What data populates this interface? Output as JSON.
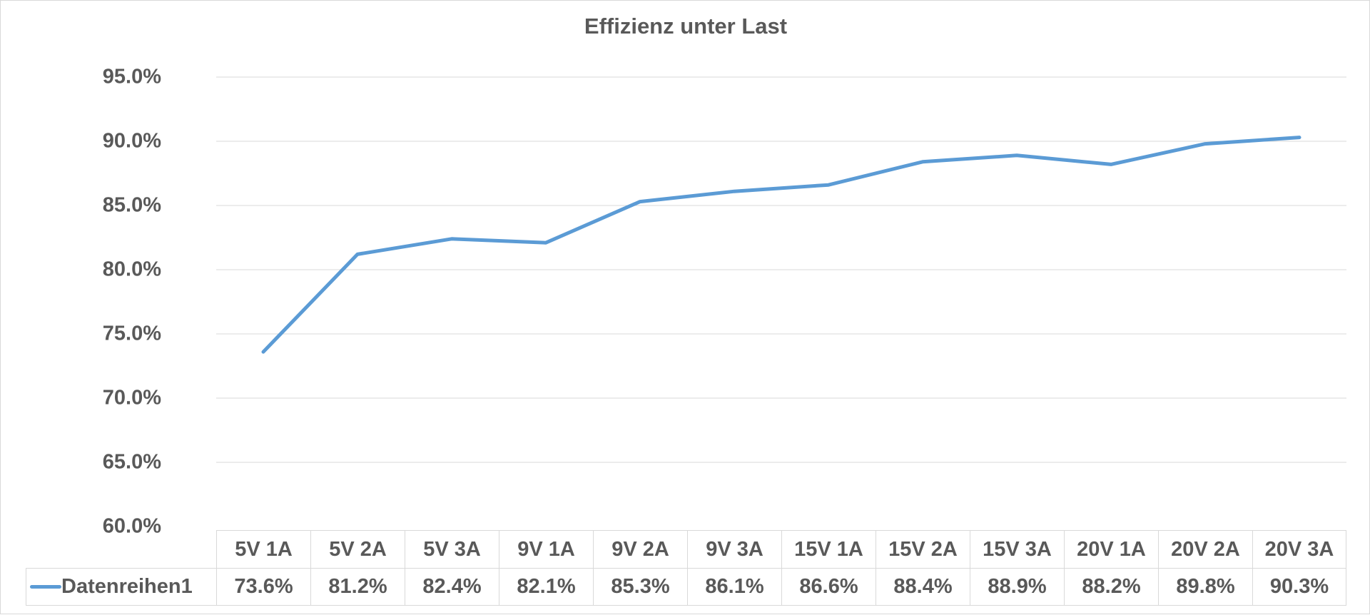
{
  "title": "Effizienz unter Last",
  "colors": {
    "series": "#5B9BD5",
    "gridline": "#D9D9D9",
    "table_border": "#D9D9D9",
    "text": "#595959"
  },
  "chart_data": {
    "type": "line",
    "title": "Effizienz unter Last",
    "categories": [
      "5V 1A",
      "5V 2A",
      "5V 3A",
      "9V 1A",
      "9V 2A",
      "9V 3A",
      "15V 1A",
      "15V 2A",
      "15V 3A",
      "20V 1A",
      "20V 2A",
      "20V 3A"
    ],
    "series": [
      {
        "name": "Datenreihen1",
        "values": [
          73.6,
          81.2,
          82.4,
          82.1,
          85.3,
          86.1,
          86.6,
          88.4,
          88.9,
          88.2,
          89.8,
          90.3
        ]
      }
    ],
    "xlabel": "",
    "ylabel": "",
    "ylim": [
      60,
      95
    ],
    "ytick_step": 5,
    "ytick_labels_top_to_bottom": [
      "95.0%",
      "90.0%",
      "85.0%",
      "80.0%",
      "75.0%",
      "70.0%",
      "65.0%",
      "60.0%"
    ],
    "grid": true,
    "legend_position": "data-table-left"
  },
  "table": {
    "legend_label": "Datenreihen1",
    "headers": [
      "5V 1A",
      "5V 2A",
      "5V 3A",
      "9V 1A",
      "9V 2A",
      "9V 3A",
      "15V 1A",
      "15V 2A",
      "15V 3A",
      "20V 1A",
      "20V 2A",
      "20V 3A"
    ],
    "values": [
      "73.6%",
      "81.2%",
      "82.4%",
      "82.1%",
      "85.3%",
      "86.1%",
      "86.6%",
      "88.4%",
      "88.9%",
      "88.2%",
      "89.8%",
      "90.3%"
    ]
  }
}
